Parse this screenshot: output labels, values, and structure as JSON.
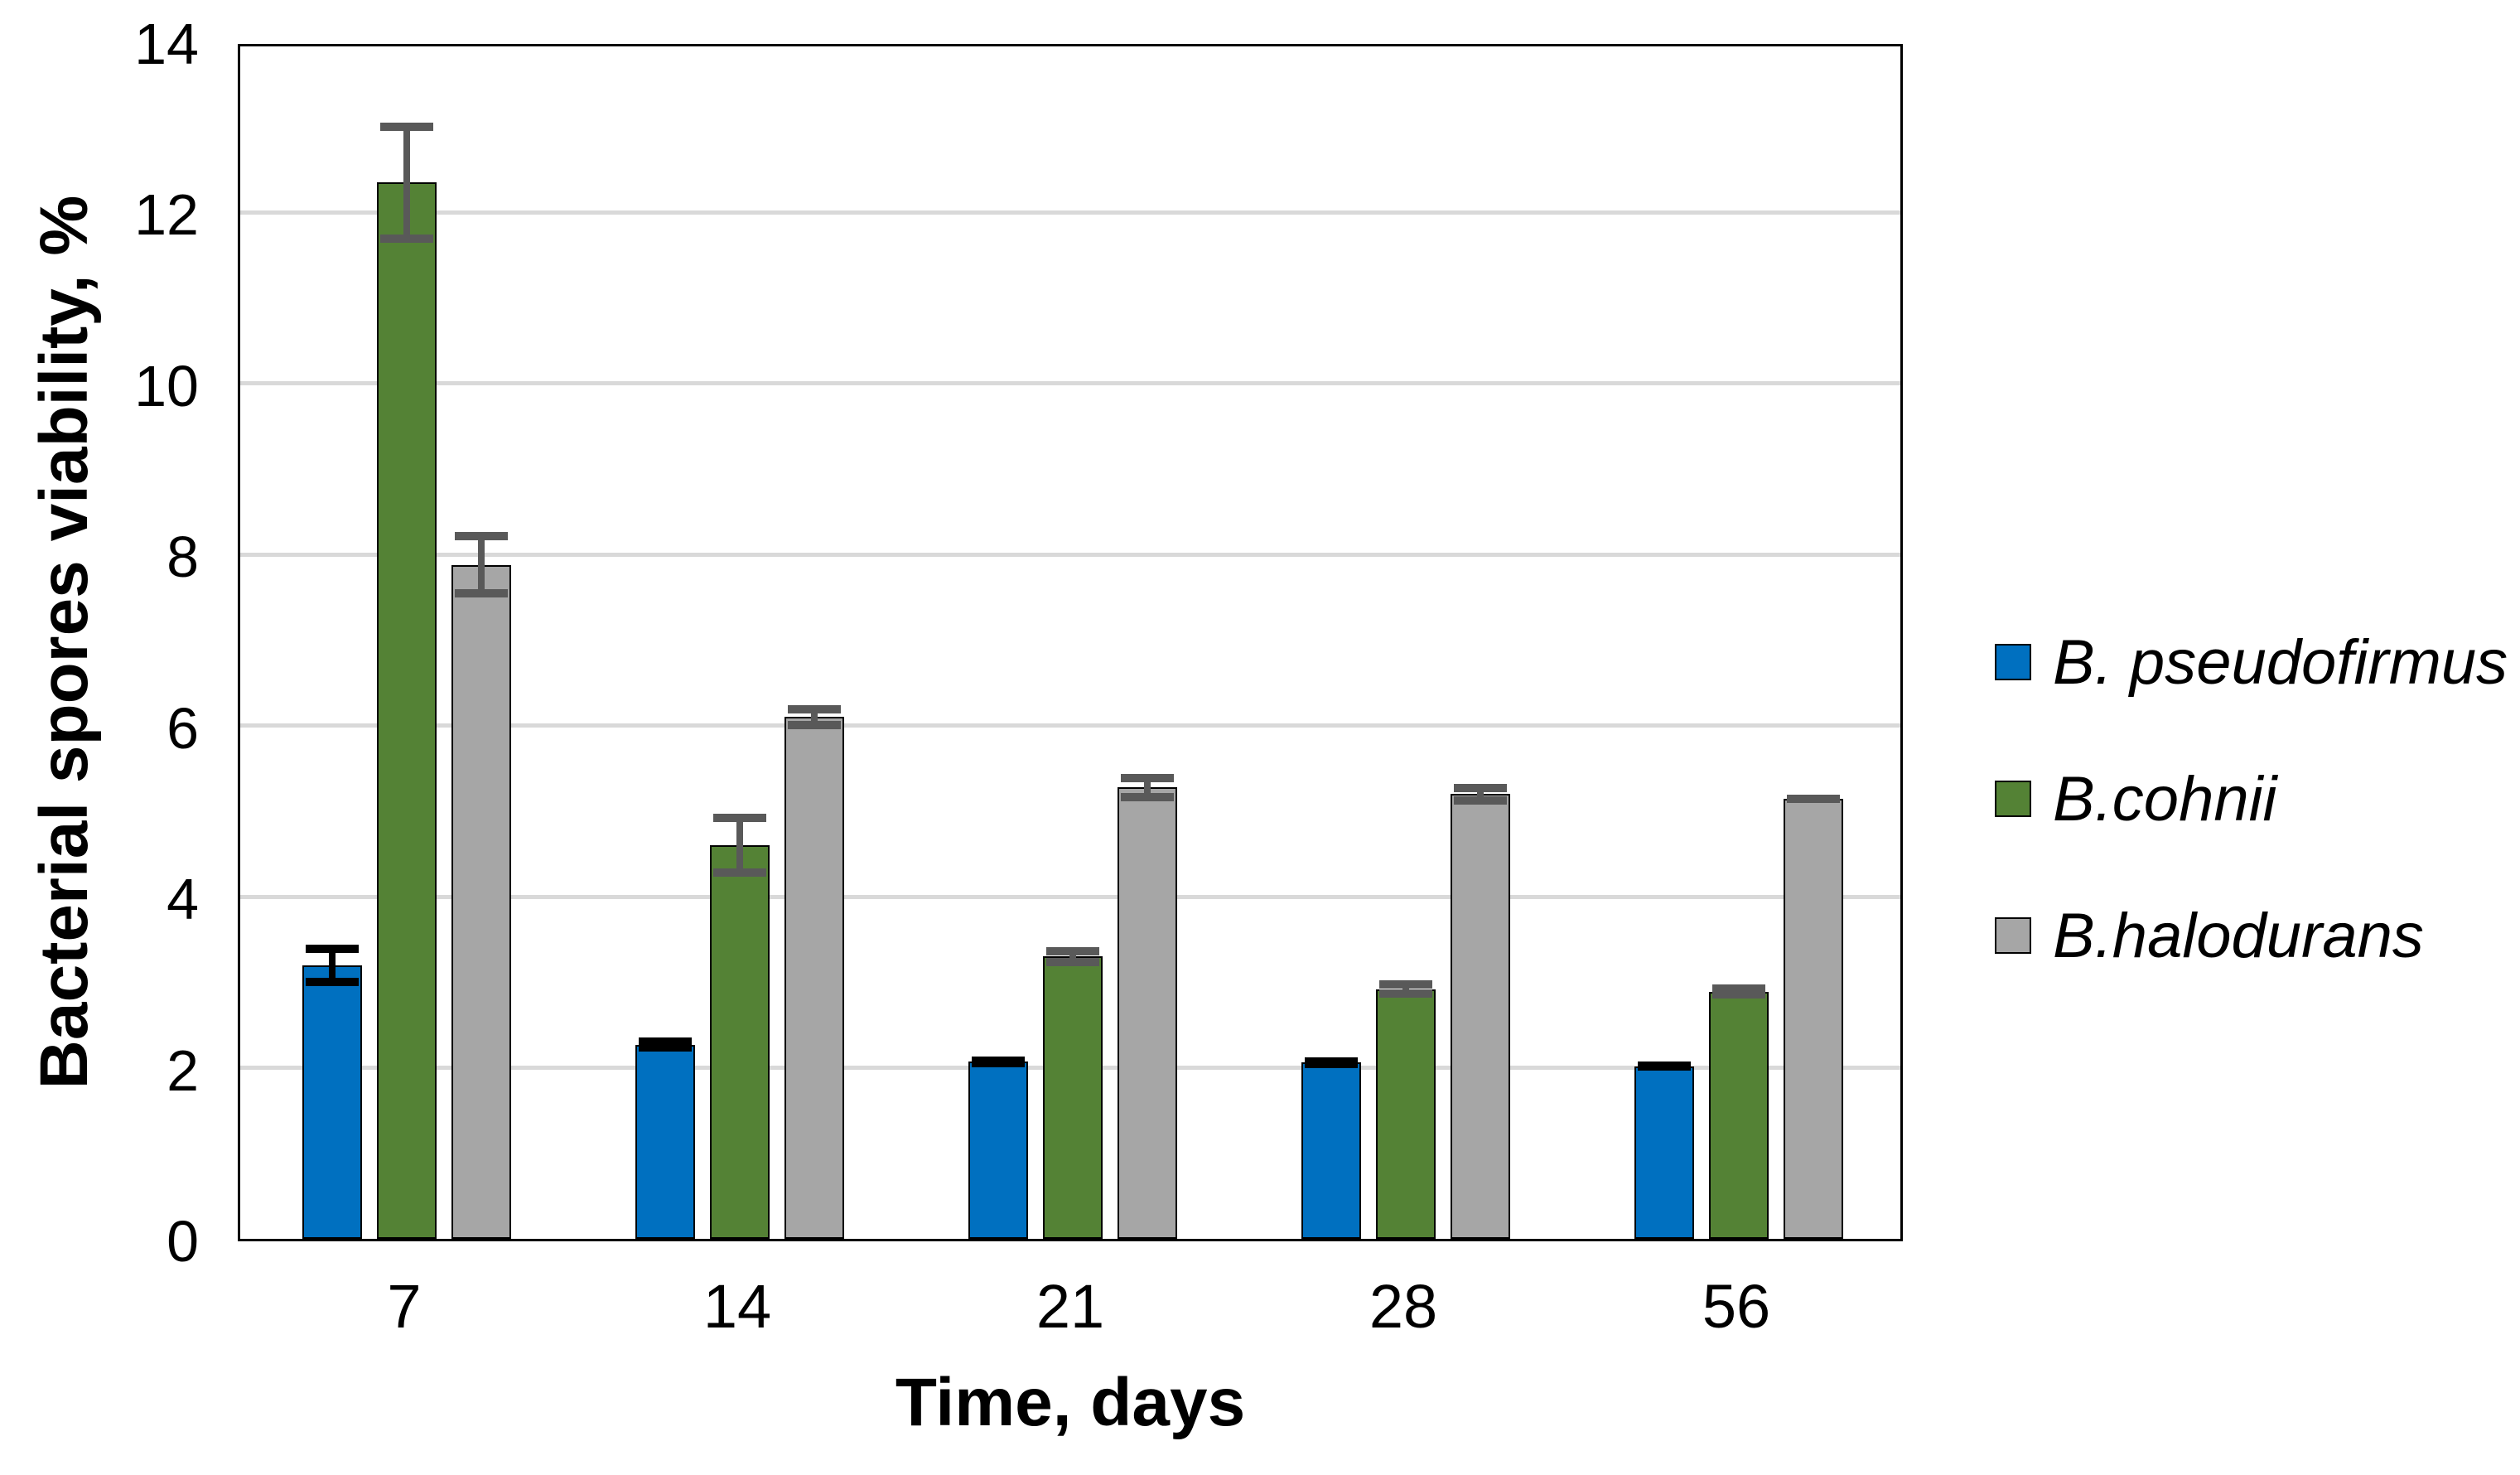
{
  "chart_data": {
    "type": "bar",
    "title": "",
    "xlabel": "Time, days",
    "ylabel": "Bacterial spores viability, %",
    "categories": [
      "7",
      "14",
      "21",
      "28",
      "56"
    ],
    "series": [
      {
        "name": "B. pseudofirmus",
        "color": "#0070C0",
        "error_color": "#000000",
        "values": [
          3.2,
          2.27,
          2.07,
          2.06,
          2.02
        ],
        "errors": [
          0.24,
          0.08,
          0.06,
          0.06,
          0.05
        ]
      },
      {
        "name": "B.cohnii",
        "color": "#548235",
        "error_color": "#595959",
        "values": [
          12.35,
          4.6,
          3.3,
          2.92,
          2.89
        ],
        "errors": [
          0.7,
          0.37,
          0.11,
          0.1,
          0.08
        ]
      },
      {
        "name": "B.halodurans",
        "color": "#A6A6A6",
        "error_color": "#595959",
        "values": [
          7.88,
          6.1,
          5.28,
          5.2,
          5.14
        ],
        "errors": [
          0.38,
          0.14,
          0.16,
          0.12,
          0.04
        ]
      }
    ],
    "ylim": [
      0,
      14
    ],
    "yticks": [
      0,
      2,
      4,
      6,
      8,
      10,
      12,
      14
    ],
    "ytick_labels": [
      "0",
      "2",
      "4",
      "6",
      "8",
      "10",
      "12",
      "14"
    ],
    "grid": true,
    "error_bars": true,
    "legend_position": "right"
  },
  "colors": {
    "background": "#FFFFFF",
    "gridline": "#D9D9D9",
    "axis_border": "#000000",
    "text": "#000000"
  }
}
